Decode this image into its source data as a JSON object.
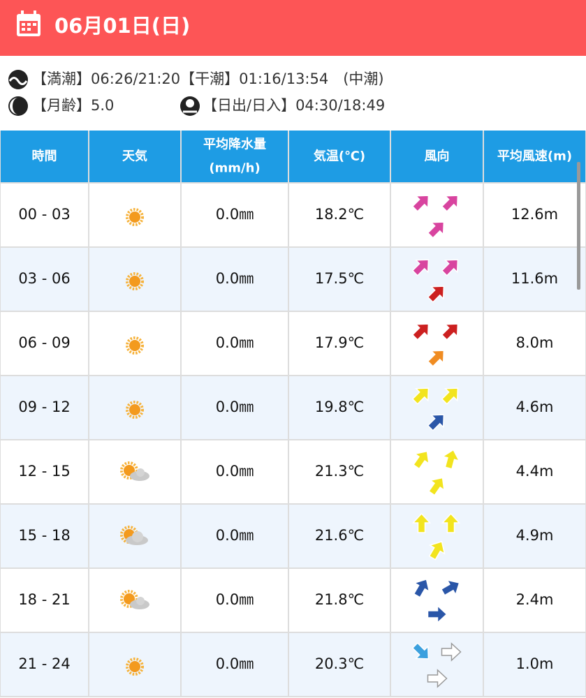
{
  "header": {
    "date": "06月01日(日)"
  },
  "info": {
    "tide": "【満潮】06:26/21:20【干潮】01:16/13:54　(中潮)",
    "moon": "【月齢】5.0",
    "sun": "【日出/日入】04:30/18:49"
  },
  "table": {
    "columns": [
      [
        "時間"
      ],
      [
        "天気"
      ],
      [
        "平均降水量",
        "(mm/h)"
      ],
      [
        "気温(℃)"
      ],
      [
        "風向"
      ],
      [
        "平均風速(m)"
      ]
    ],
    "rows": [
      [
        "00 - 03",
        "0.0㎜",
        "18.2℃",
        "12.6m"
      ],
      [
        "03 - 06",
        "0.0㎜",
        "17.5℃",
        "11.6m"
      ],
      [
        "06 - 09",
        "0.0㎜",
        "17.9℃",
        "8.0m"
      ],
      [
        "09 - 12",
        "0.0㎜",
        "19.8℃",
        "4.6m"
      ],
      [
        "12 - 15",
        "0.0㎜",
        "21.3℃",
        "4.4m"
      ],
      [
        "15 - 18",
        "0.0㎜",
        "21.6℃",
        "4.9m"
      ],
      [
        "18 - 21",
        "0.0㎜",
        "21.8℃",
        "2.4m"
      ],
      [
        "21 - 24",
        "0.0㎜",
        "20.3℃",
        "1.0m"
      ]
    ]
  }
}
